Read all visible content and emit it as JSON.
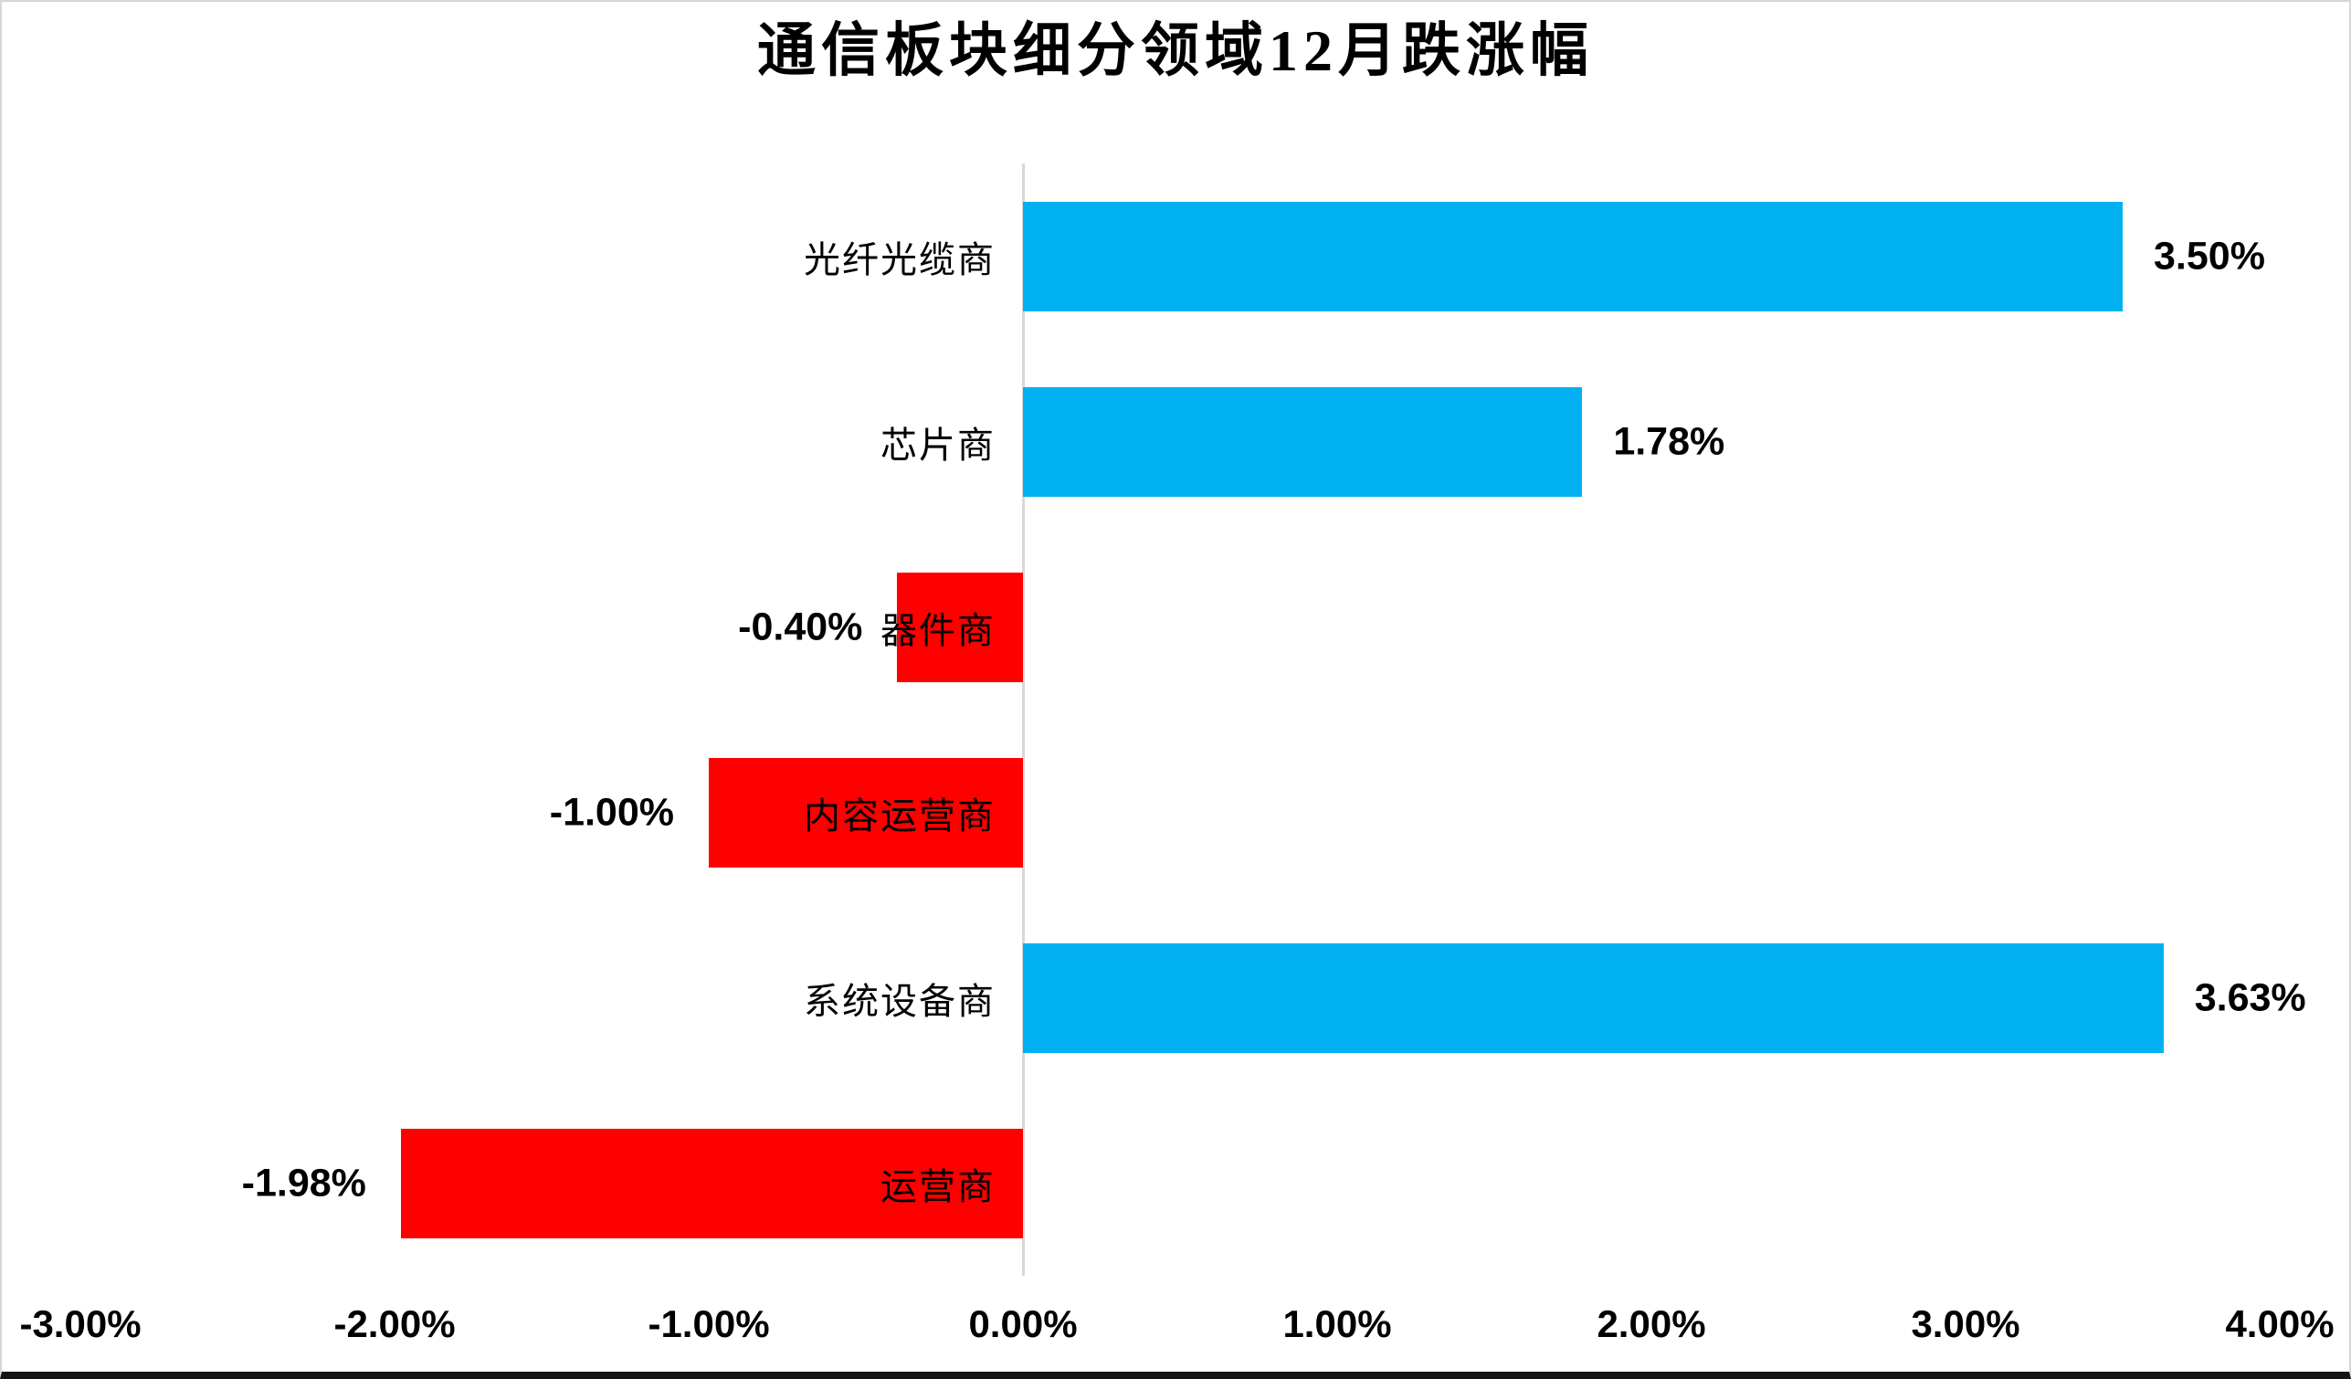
{
  "title": "通信板块细分领域12月跌涨幅",
  "colors": {
    "positive": "#00B0F0",
    "negative": "#FF0000",
    "axis_line": "#D9D9D9",
    "text": "#000000",
    "background": "#FFFFFF"
  },
  "chart_data": {
    "type": "bar",
    "orientation": "horizontal",
    "title": "通信板块细分领域12月跌涨幅",
    "categories": [
      "光纤光缆商",
      "芯片商",
      "器件商",
      "内容运营商",
      "系统设备商",
      "运营商"
    ],
    "values": [
      3.5,
      1.78,
      -0.4,
      -1.0,
      3.63,
      -1.98
    ],
    "value_labels": [
      "3.50%",
      "1.78%",
      "-0.40%",
      "-1.00%",
      "3.63%",
      "-1.98%"
    ],
    "xlabel": "",
    "ylabel": "",
    "xlim": [
      -3.0,
      4.0
    ],
    "x_ticks": [
      "-3.00%",
      "-2.00%",
      "-1.00%",
      "0.00%",
      "1.00%",
      "2.00%",
      "3.00%",
      "4.00%"
    ],
    "x_tick_values": [
      -3,
      -2,
      -1,
      0,
      1,
      2,
      3,
      4
    ],
    "grid": false,
    "legend": false,
    "positive_color": "#00B0F0",
    "negative_color": "#FF0000"
  }
}
